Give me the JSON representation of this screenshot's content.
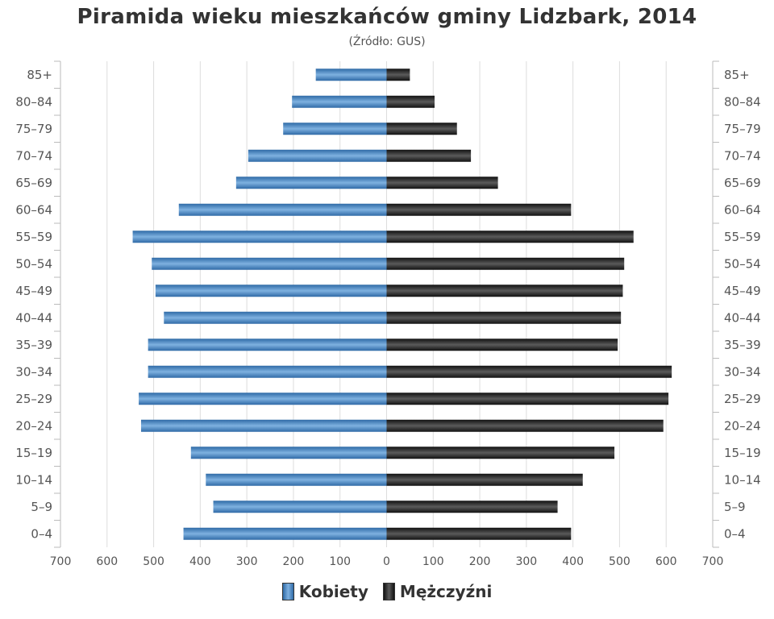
{
  "chart_data": {
    "type": "bar",
    "orientation": "horizontal",
    "title": "Piramida wieku mieszkańców gminy Lidzbark, 2014",
    "subtitle": "(Źródło: GUS)",
    "categories": [
      "85+",
      "80–84",
      "75–79",
      "70–74",
      "65–69",
      "60–64",
      "55–59",
      "50–54",
      "45–49",
      "40–44",
      "35–39",
      "30–34",
      "25–29",
      "20–24",
      "15–19",
      "10–14",
      "5–9",
      "0–4"
    ],
    "series": [
      {
        "name": "Kobiety",
        "color": "#3d7bb8",
        "values": [
          152,
          203,
          222,
          297,
          323,
          446,
          545,
          504,
          496,
          478,
          512,
          512,
          532,
          527,
          420,
          388,
          372,
          436
        ]
      },
      {
        "name": "Mężczyźni",
        "color": "#222222",
        "values": [
          50,
          103,
          151,
          181,
          239,
          396,
          530,
          510,
          507,
          503,
          496,
          612,
          605,
          594,
          489,
          421,
          367,
          396
        ]
      }
    ],
    "x_tick_values": [
      -700,
      -600,
      -500,
      -400,
      -300,
      -200,
      -100,
      0,
      100,
      200,
      300,
      400,
      500,
      600,
      700
    ],
    "x_tick_labels": [
      "700",
      "600",
      "500",
      "400",
      "300",
      "200",
      "100",
      "0",
      "100",
      "200",
      "300",
      "400",
      "500",
      "600",
      "700"
    ],
    "xlim": [
      -700,
      700
    ],
    "grid": true,
    "legend_position": "bottom"
  }
}
